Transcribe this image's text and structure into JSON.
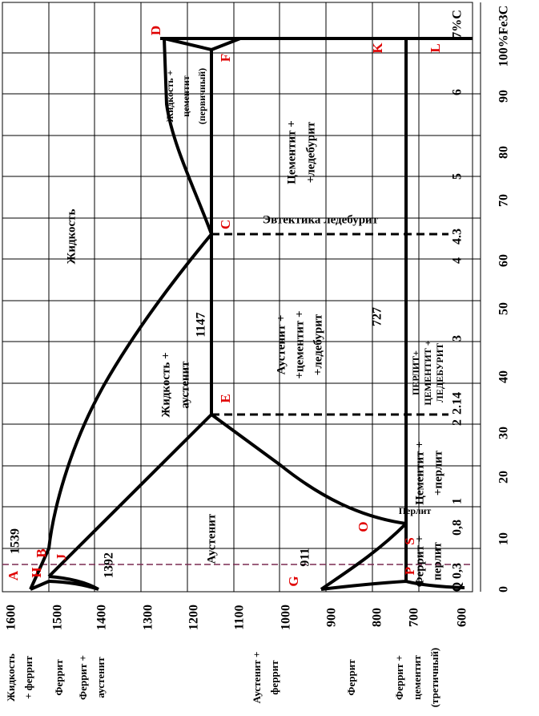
{
  "temperature_ticks": [
    "1600",
    "1500",
    "1400",
    "1300",
    "1200",
    "1100",
    "1000",
    "900",
    "800",
    "700",
    "600"
  ],
  "carbon_ticks": [
    "0,3",
    "0,8",
    "1",
    "2",
    "2.14",
    "3",
    "4",
    "4.3",
    "5",
    "6",
    "7%C"
  ],
  "fe3c_ticks": [
    "0",
    "10",
    "20",
    "30",
    "40",
    "50",
    "60",
    "70",
    "80",
    "90",
    "100%Fe3C"
  ],
  "points": [
    "A",
    "H",
    "B",
    "J",
    "D",
    "F",
    "C",
    "E",
    "G",
    "O",
    "S",
    "P",
    "Q",
    "K",
    "L"
  ],
  "temperatures": [
    "1539",
    "1392",
    "1147",
    "911",
    "727"
  ],
  "regions": [
    [
      "Жидкость"
    ],
    [
      "Жидкость +",
      "аустенит"
    ],
    [
      "Аустенит"
    ],
    [
      "Аустенит +",
      "+цементит +",
      "+ледебурит"
    ],
    [
      "Цементит +",
      "+ледебурит"
    ],
    [
      "Жидкость +",
      "цементит",
      "(первичный)"
    ],
    [
      "Эвтектика ледебурит"
    ],
    [
      "Перлит"
    ],
    [
      "Цементит +",
      "+перлит"
    ],
    [
      "ПЕРЛИТ+",
      "ЦЕМЕНТИТ +",
      "ЛЕДЕБУРИТ"
    ],
    [
      "Феррит +",
      "перлит"
    ]
  ],
  "bottom_labels": [
    [
      "Жидкость",
      "+ феррит"
    ],
    [
      "Феррит"
    ],
    [
      "Феррит +",
      "аустенит"
    ],
    [
      "Аустенит +",
      "феррит"
    ],
    [
      "Феррит"
    ],
    [
      "Феррит +",
      "цементит",
      "(третичный)"
    ]
  ]
}
